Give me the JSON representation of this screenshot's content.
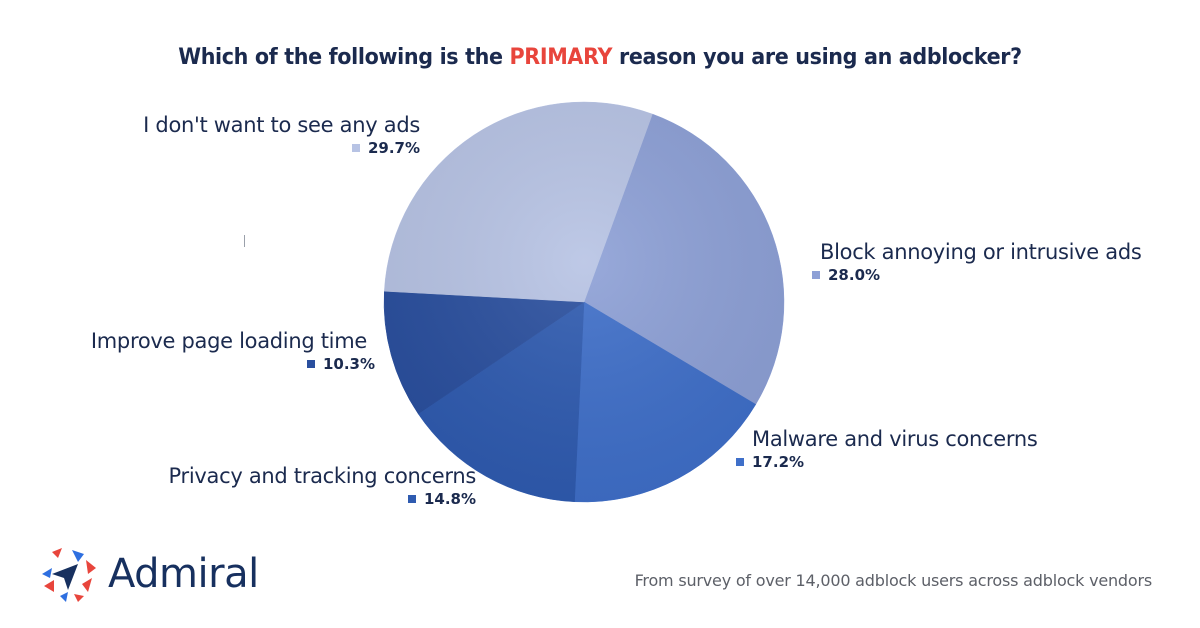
{
  "title": {
    "prefix": "Which of the following is the ",
    "emphasis": "PRIMARY",
    "suffix": " reason you are using an adblocker?",
    "emphasis_color": "#e8453c"
  },
  "chart_data": {
    "type": "pie",
    "title": "Which of the following is the PRIMARY reason you are using an adblocker?",
    "start_angle_deg": 20,
    "direction": "clockwise",
    "categories": [
      "Block annoying or intrusive ads",
      "Malware and virus concerns",
      "Privacy and tracking concerns",
      "Improve page loading time",
      "I don't want to see any ads"
    ],
    "values": [
      28.0,
      17.2,
      14.8,
      10.3,
      29.7
    ],
    "labels": [
      "28.0%",
      "17.2%",
      "14.8%",
      "10.3%",
      "29.7%"
    ],
    "colors": [
      "#8da0d6",
      "#3f6fc9",
      "#2f5bb0",
      "#2a4f9e",
      "#b7c3e4"
    ],
    "legend_position": "labels beside slices",
    "unit": "%"
  },
  "footer": {
    "brand": "Admiral",
    "note": "From survey of over 14,000 adblock users across adblock vendors"
  }
}
